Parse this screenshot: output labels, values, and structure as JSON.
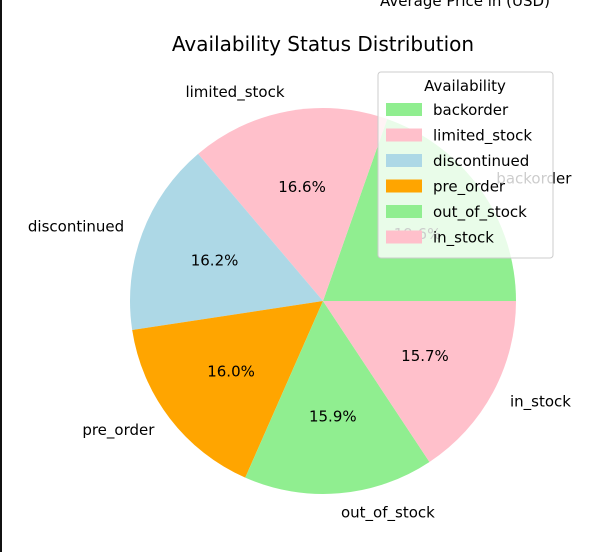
{
  "header": {
    "cut_label": "Average Price in (USD)"
  },
  "chart_data": {
    "type": "pie",
    "title": "Availability Status Distribution",
    "categories": [
      "backorder",
      "limited_stock",
      "discontinued",
      "pre_order",
      "out_of_stock",
      "in_stock"
    ],
    "values": [
      19.6,
      16.6,
      16.2,
      16.0,
      15.9,
      15.7
    ],
    "value_labels": [
      "19.6%",
      "16.6%",
      "16.2%",
      "16.0%",
      "15.9%",
      "15.7%"
    ],
    "colors": [
      "#90EE90",
      "#FFC0CB",
      "#ADD8E6",
      "#FFA500",
      "#90EE90",
      "#FFC0CB"
    ],
    "start_angle_deg": 0,
    "direction": "counterclockwise",
    "legend": {
      "title": "Availability",
      "placement": "top-right",
      "entries": [
        "backorder",
        "limited_stock",
        "discontinued",
        "pre_order",
        "out_of_stock",
        "in_stock"
      ]
    }
  }
}
